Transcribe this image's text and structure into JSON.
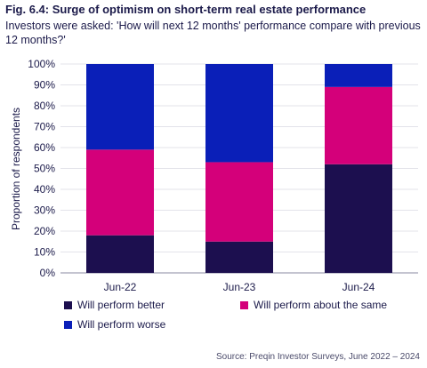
{
  "header": {
    "title": "Fig. 6.4: Surge of optimism on short-term real estate performance",
    "subtitle": "Investors were asked: 'How will next 12 months' performance compare with previous 12 months?'"
  },
  "source": "Source: Preqin Investor Surveys, June 2022 – 2024",
  "chart_data": {
    "type": "bar",
    "stacked": true,
    "categories": [
      "Jun-22",
      "Jun-23",
      "Jun-24"
    ],
    "ylabel": "Proportion of respondents",
    "ylim": [
      0,
      100
    ],
    "yticks": [
      "0%",
      "10%",
      "20%",
      "30%",
      "40%",
      "50%",
      "60%",
      "70%",
      "80%",
      "90%",
      "100%"
    ],
    "series": [
      {
        "name": "Will perform better",
        "color": "#1c0f4f",
        "values": [
          18,
          15,
          52
        ]
      },
      {
        "name": "Will perform about the same",
        "color": "#d4007a",
        "values": [
          41,
          38,
          37
        ]
      },
      {
        "name": "Will perform worse",
        "color": "#0a1fb8",
        "values": [
          41,
          47,
          11
        ]
      }
    ],
    "grid": true,
    "legend_position": "bottom"
  }
}
